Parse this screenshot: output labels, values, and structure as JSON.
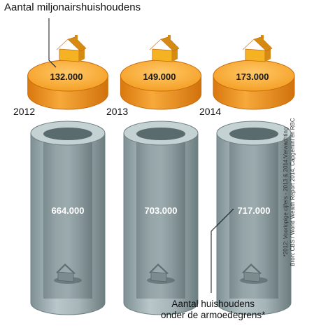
{
  "title_top": "Aantal miljonairshuishoudens",
  "title_bottom_line1": "Aantal huishoudens",
  "title_bottom_line2": "onder de armoedegrens*",
  "footnote_line1": "*2012: Voorlopige cijfers - 2013 & 2014:Verwachting",
  "footnote_line2": "Bron: CBS / World Wealth Report 2014, Capgemini en RBC",
  "colors": {
    "gold": "#f39a1c",
    "gold_dark": "#c96c0b",
    "gold_light": "#ffd08a",
    "tube": "#9fb0b4",
    "tube_dark": "#6f8184",
    "house": "#f5b323",
    "house_roof": "#d58a14"
  },
  "chart_data": {
    "type": "table",
    "categories": [
      "2012",
      "2013",
      "2014"
    ],
    "series": [
      {
        "name": "Aantal miljonairshuishoudens",
        "values": [
          132000,
          149000,
          173000
        ],
        "labels": [
          "132.000",
          "149.000",
          "173.000"
        ]
      },
      {
        "name": "Aantal huishoudens onder de armoedegrens*",
        "values": [
          664000,
          703000,
          717000
        ],
        "labels": [
          "664.000",
          "703.000",
          "717.000"
        ]
      }
    ]
  }
}
